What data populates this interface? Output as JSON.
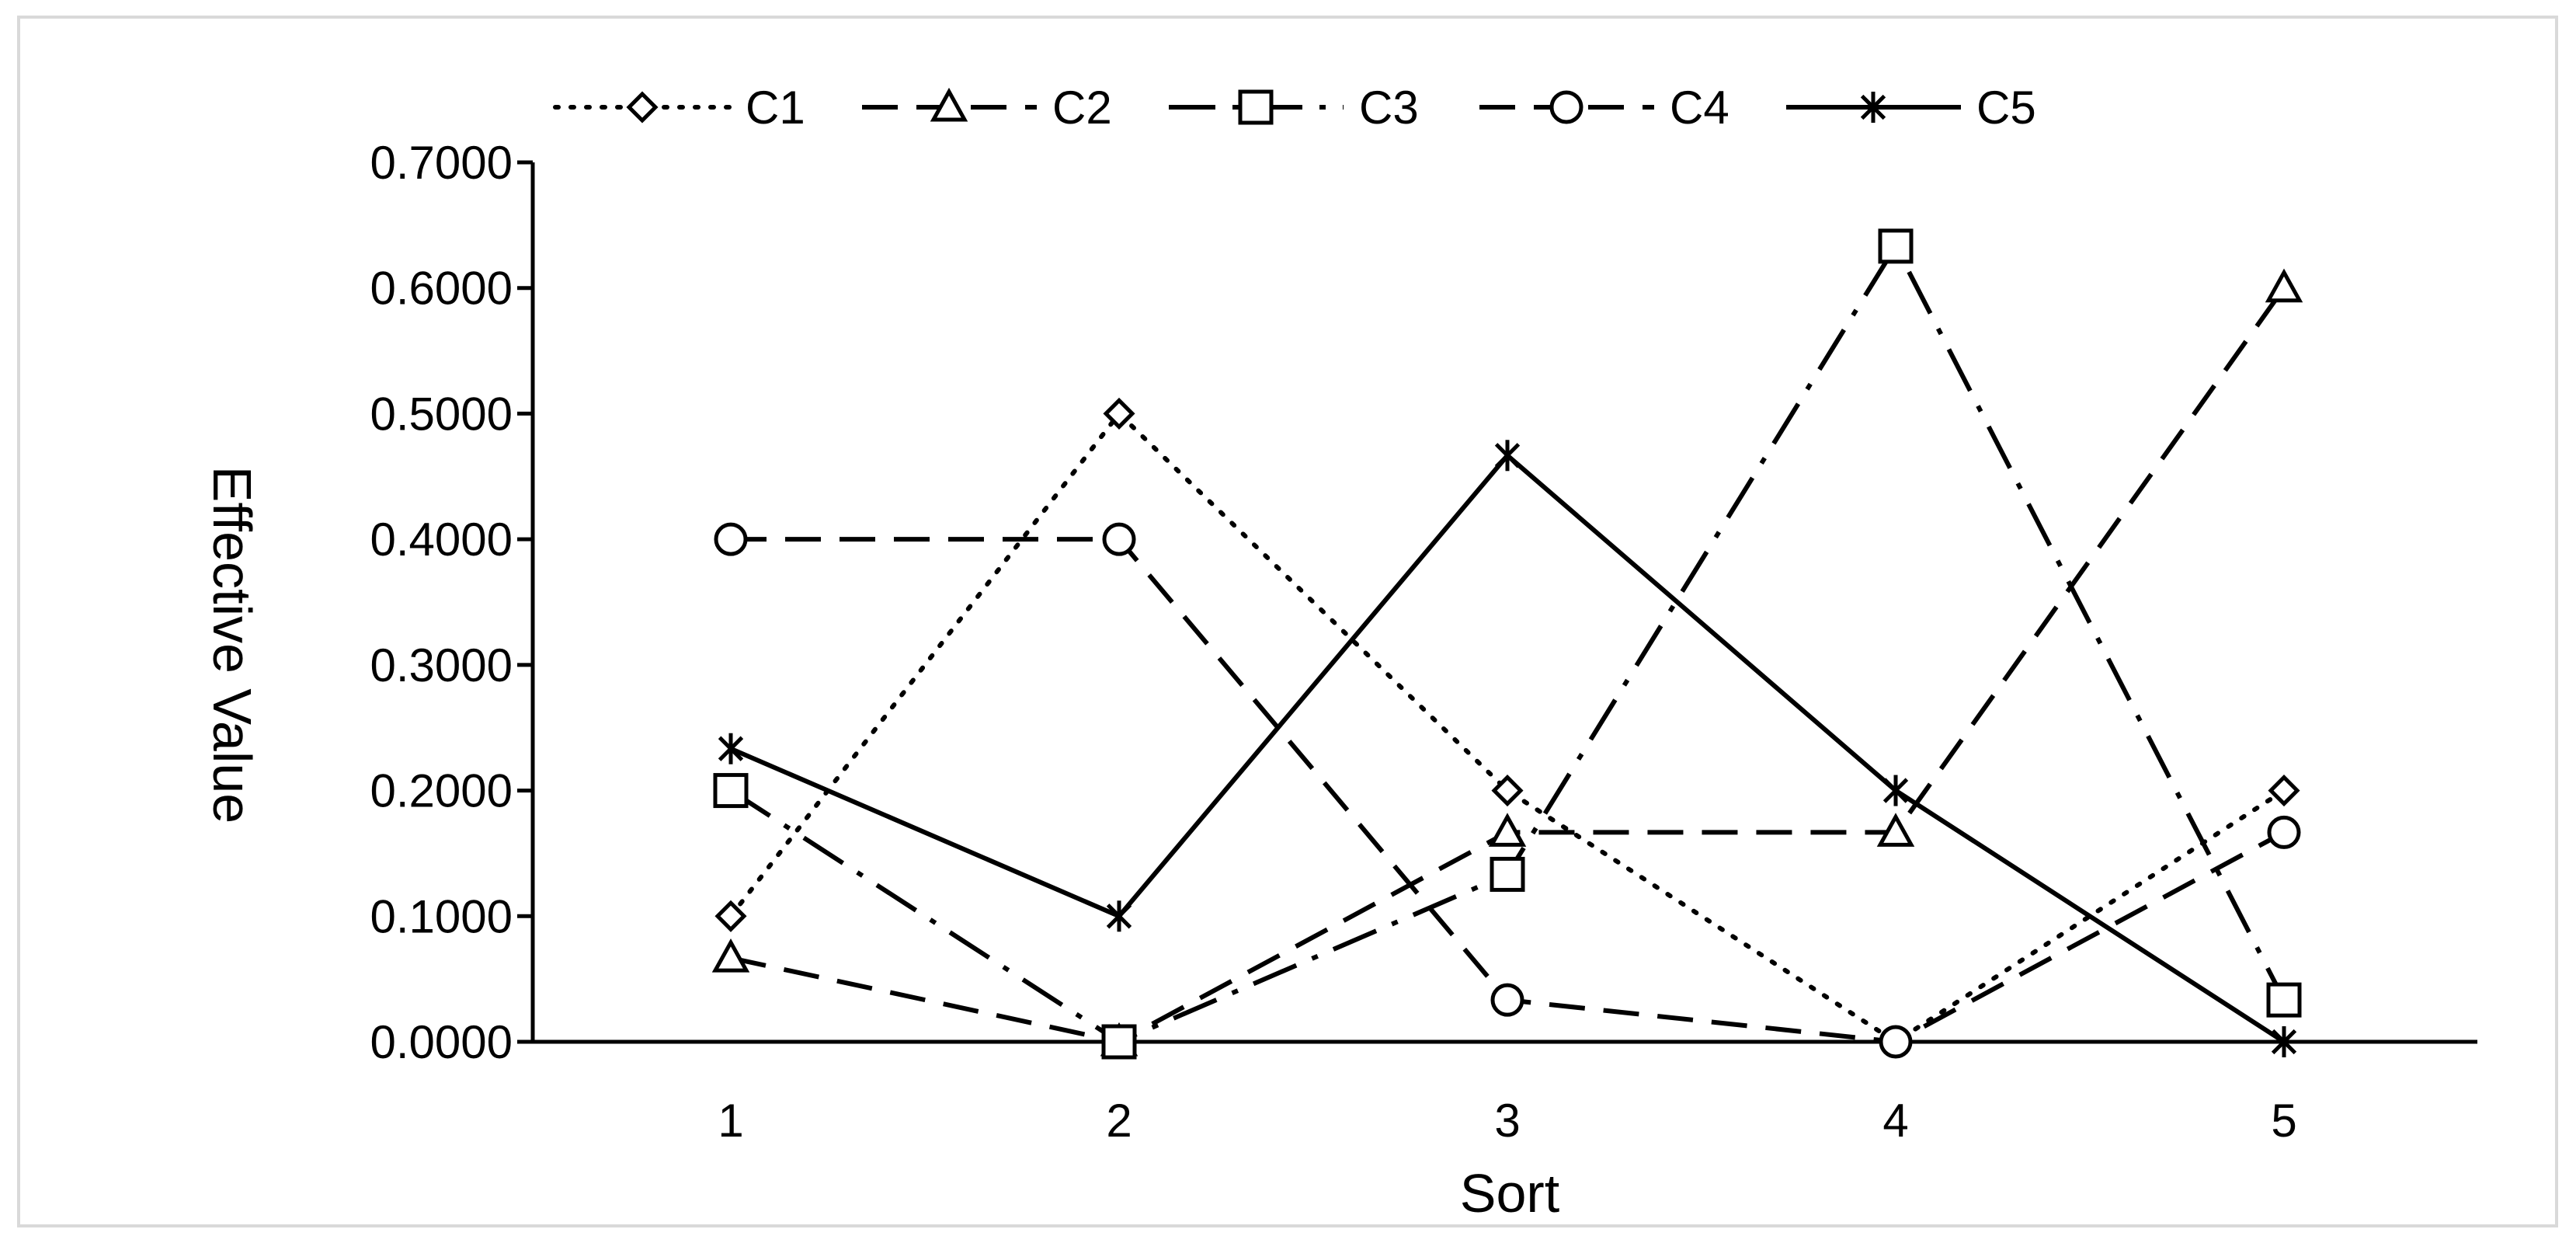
{
  "chart_data": {
    "type": "line",
    "title": "",
    "xlabel": "Sort",
    "ylabel": "Effective Value",
    "categories": [
      "1",
      "2",
      "3",
      "4",
      "5"
    ],
    "yticks": [
      "0.0000",
      "0.1000",
      "0.2000",
      "0.3000",
      "0.4000",
      "0.5000",
      "0.6000",
      "0.7000"
    ],
    "ylim": [
      0,
      0.7
    ],
    "grid": false,
    "legend_position": "top",
    "series": [
      {
        "name": "C1",
        "values": [
          0.1,
          0.5,
          0.2,
          0.0,
          0.2
        ],
        "marker": "diamond",
        "dash": "dot",
        "color": "#000000"
      },
      {
        "name": "C2",
        "values": [
          0.0667,
          0.0,
          0.1667,
          0.1667,
          0.6
        ],
        "marker": "triangle",
        "dash": "dash",
        "color": "#000000"
      },
      {
        "name": "C3",
        "values": [
          0.2,
          0.0,
          0.1333,
          0.6333,
          0.0333
        ],
        "marker": "square",
        "dash": "dash-dot",
        "color": "#000000"
      },
      {
        "name": "C4",
        "values": [
          0.4,
          0.4,
          0.0333,
          0.0,
          0.1667
        ],
        "marker": "circle",
        "dash": "dash",
        "color": "#000000"
      },
      {
        "name": "C5",
        "values": [
          0.2333,
          0.1,
          0.4667,
          0.2,
          0.0
        ],
        "marker": "star",
        "dash": "solid",
        "color": "#000000"
      }
    ]
  }
}
